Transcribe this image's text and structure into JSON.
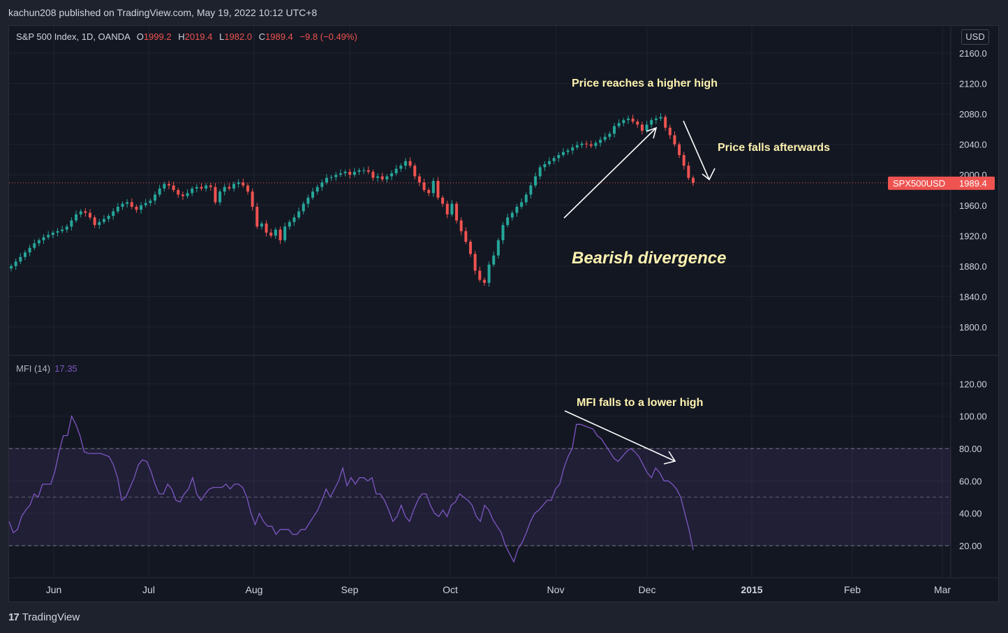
{
  "header": {
    "published": "kachun208 published on TradingView.com, May 19, 2022 10:12 UTC+8"
  },
  "legend": {
    "symbol": "S&P 500 Index, 1D, OANDA",
    "o_label": "O",
    "o_value": "1999.2",
    "h_label": "H",
    "h_value": "2019.4",
    "l_label": "L",
    "l_value": "1982.0",
    "c_label": "C",
    "c_value": "1989.4",
    "change": "−9.8 (−0.49%)"
  },
  "currency": "USD",
  "price_tag": {
    "symbol": "SPX500USD",
    "value": "1989.4"
  },
  "mfi_legend": {
    "label": "MFI (14)",
    "value": "17.35"
  },
  "footer": {
    "brand": "TradingView"
  },
  "annotations": {
    "higher_high": "Price reaches a higher high",
    "falls_after": "Price falls afterwards",
    "divergence": "Bearish divergence",
    "lower_high": "MFI falls to a lower high"
  },
  "colors": {
    "up": "#26a69a",
    "down": "#ef5350",
    "mfi": "#7e57c2",
    "text": "#d1d4dc",
    "annotation": "#fff3b0"
  },
  "chart_data": [
    {
      "type": "candlestick",
      "title": "S&P 500 Index, 1D, OANDA",
      "x_ticks": [
        "Jun",
        "Jul",
        "Aug",
        "Sep",
        "Oct",
        "Nov",
        "Dec",
        "2015",
        "Feb",
        "Mar"
      ],
      "y_ticks": [
        "2160.0",
        "2120.0",
        "2080.0",
        "2040.0",
        "2000.0",
        "1960.0",
        "1920.0",
        "1880.0",
        "1840.0",
        "1800.0"
      ],
      "ylim": [
        1780,
        2180
      ],
      "last_price": 1989.4,
      "close": [
        1880,
        1886,
        1892,
        1898,
        1904,
        1910,
        1914,
        1918,
        1921,
        1924,
        1926,
        1928,
        1932,
        1940,
        1948,
        1952,
        1950,
        1944,
        1934,
        1938,
        1942,
        1946,
        1952,
        1958,
        1962,
        1964,
        1958,
        1954,
        1960,
        1963,
        1966,
        1974,
        1982,
        1988,
        1986,
        1980,
        1974,
        1972,
        1976,
        1982,
        1984,
        1982,
        1986,
        1984,
        1964,
        1978,
        1984,
        1982,
        1988,
        1990,
        1986,
        1978,
        1958,
        1932,
        1936,
        1924,
        1920,
        1928,
        1914,
        1932,
        1938,
        1944,
        1952,
        1962,
        1970,
        1978,
        1984,
        1990,
        1996,
        1997,
        2000,
        2002,
        2004,
        2000,
        2004,
        2006,
        2006,
        2004,
        1996,
        1998,
        1994,
        1998,
        2002,
        2008,
        2012,
        2018,
        2012,
        1998,
        1990,
        1980,
        1976,
        1992,
        1970,
        1962,
        1948,
        1962,
        1940,
        1926,
        1912,
        1896,
        1874,
        1862,
        1858,
        1882,
        1894,
        1914,
        1934,
        1944,
        1950,
        1958,
        1964,
        1974,
        1986,
        1998,
        2010,
        2014,
        2018,
        2022,
        2026,
        2030,
        2032,
        2036,
        2039,
        2041,
        2040,
        2038,
        2042,
        2046,
        2050,
        2054,
        2064,
        2068,
        2072,
        2074,
        2070,
        2066,
        2058,
        2066,
        2072,
        2074,
        2076,
        2062,
        2052,
        2040,
        2026,
        2012,
        1996,
        1989.4
      ]
    },
    {
      "type": "line",
      "title": "MFI (14)",
      "y_ticks": [
        "120.00",
        "100.00",
        "80.00",
        "60.00",
        "40.00",
        "20.00"
      ],
      "ylim": [
        0,
        130
      ],
      "band": [
        20,
        80
      ],
      "midline": 50,
      "last_value": 17.35,
      "values": [
        35,
        28,
        30,
        38,
        42,
        45,
        52,
        50,
        58,
        58,
        58,
        66,
        78,
        88,
        88,
        100,
        95,
        88,
        78,
        77,
        77,
        77,
        77,
        76,
        75,
        70,
        62,
        48,
        50,
        56,
        62,
        70,
        73,
        72,
        66,
        58,
        52,
        52,
        58,
        55,
        48,
        47,
        52,
        55,
        62,
        52,
        48,
        52,
        55,
        56,
        56,
        56,
        58,
        55,
        58,
        58,
        56,
        50,
        40,
        33,
        40,
        35,
        32,
        32,
        27,
        30,
        30,
        30,
        27,
        27,
        30,
        30,
        34,
        38,
        42,
        48,
        55,
        50,
        55,
        60,
        68,
        57,
        62,
        58,
        62,
        62,
        60,
        62,
        52,
        52,
        48,
        42,
        35,
        38,
        45,
        38,
        35,
        42,
        48,
        52,
        52,
        45,
        40,
        38,
        42,
        38,
        45,
        47,
        52,
        50,
        48,
        45,
        38,
        35,
        45,
        42,
        36,
        32,
        28,
        20,
        15,
        10,
        18,
        22,
        28,
        35,
        40,
        42,
        45,
        48,
        48,
        55,
        58,
        68,
        75,
        80,
        95,
        95,
        94,
        93,
        92,
        88,
        86,
        82,
        78,
        74,
        72,
        75,
        78,
        80,
        78,
        75,
        70,
        65,
        62,
        68,
        65,
        60,
        60,
        58,
        55,
        50,
        40,
        30,
        17.35
      ]
    }
  ]
}
